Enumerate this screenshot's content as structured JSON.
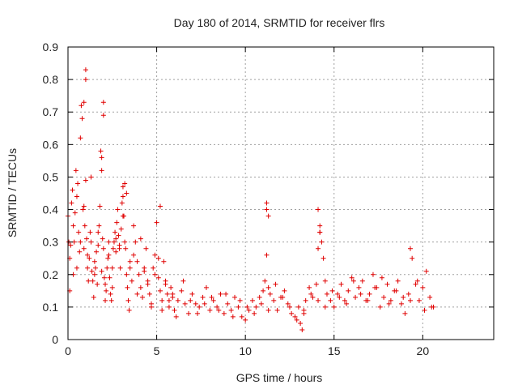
{
  "chart_data": {
    "type": "scatter",
    "title": "Day 180 of 2014, SRMTID for receiver flrs",
    "xlabel": "GPS time / hours",
    "ylabel": "SRMTID / TECUs",
    "xlim": [
      0,
      24
    ],
    "ylim": [
      0,
      0.9
    ],
    "xticks": [
      0,
      5,
      10,
      15,
      20
    ],
    "yticks": [
      0,
      0.1,
      0.2,
      0.3,
      0.4,
      0.5,
      0.6,
      0.7,
      0.8,
      0.9
    ],
    "xtick_labels": [
      "0",
      "5",
      "10",
      "15",
      "20"
    ],
    "ytick_labels": [
      "0",
      "0.1",
      "0.2",
      "0.3",
      "0.4",
      "0.5",
      "0.6",
      "0.7",
      "0.8",
      "0.9"
    ],
    "grid": true,
    "marker": "+",
    "color": "#e00000",
    "series": [
      {
        "name": "SRMTID",
        "x": [
          0.0,
          0.05,
          0.1,
          0.15,
          0.2,
          0.25,
          0.3,
          0.35,
          0.4,
          0.45,
          0.5,
          0.55,
          0.6,
          0.65,
          0.7,
          0.75,
          0.8,
          0.85,
          0.9,
          0.95,
          1.0,
          1.05,
          1.1,
          1.15,
          1.2,
          1.25,
          1.3,
          1.35,
          1.4,
          1.45,
          1.5,
          1.55,
          1.6,
          1.65,
          1.7,
          1.75,
          1.8,
          1.85,
          1.9,
          1.95,
          2.0,
          2.05,
          2.1,
          2.15,
          2.2,
          2.25,
          2.3,
          2.35,
          2.4,
          2.45,
          2.5,
          2.55,
          2.6,
          2.65,
          2.7,
          2.75,
          2.8,
          2.85,
          2.9,
          2.95,
          3.0,
          3.05,
          3.1,
          3.15,
          3.2,
          3.25,
          3.3,
          3.35,
          3.4,
          3.45,
          3.5,
          3.6,
          3.7,
          3.8,
          3.9,
          4.0,
          4.1,
          4.2,
          4.3,
          4.4,
          4.5,
          4.6,
          4.7,
          4.8,
          4.9,
          5.0,
          5.1,
          5.2,
          5.3,
          5.4,
          5.5,
          5.6,
          5.7,
          5.8,
          5.9,
          6.0,
          6.2,
          6.4,
          6.6,
          6.8,
          7.0,
          7.2,
          7.4,
          7.6,
          7.8,
          8.0,
          8.2,
          8.4,
          8.6,
          8.8,
          9.0,
          9.2,
          9.4,
          9.6,
          9.8,
          10.0,
          10.2,
          10.4,
          10.6,
          10.8,
          11.0,
          11.1,
          11.2,
          11.3,
          11.4,
          11.6,
          11.8,
          12.0,
          12.2,
          12.4,
          12.6,
          12.8,
          13.0,
          13.1,
          13.2,
          13.3,
          13.4,
          13.6,
          13.8,
          14.0,
          14.1,
          14.2,
          14.3,
          14.4,
          14.5,
          14.6,
          14.8,
          15.0,
          15.2,
          15.4,
          15.6,
          15.8,
          16.0,
          16.2,
          16.4,
          16.6,
          16.8,
          17.0,
          17.2,
          17.4,
          17.6,
          17.8,
          18.0,
          18.2,
          18.4,
          18.6,
          18.8,
          19.0,
          19.2,
          19.4,
          19.6,
          19.8,
          20.0,
          20.2,
          20.4,
          20.6,
          0.1,
          0.3,
          0.5,
          0.7,
          0.9,
          1.1,
          1.3,
          1.5,
          1.7,
          1.9,
          2.1,
          2.3,
          2.5,
          2.7,
          2.9,
          3.1,
          3.3,
          3.5,
          3.7,
          3.9,
          4.1,
          4.3,
          4.5,
          4.7,
          4.9,
          5.1,
          5.3,
          5.5,
          5.7,
          5.9,
          6.1,
          6.5,
          6.9,
          7.3,
          7.7,
          8.1,
          8.5,
          8.9,
          9.3,
          9.7,
          10.1,
          10.5,
          10.9,
          11.3,
          11.7,
          12.1,
          12.5,
          12.9,
          13.3,
          13.7,
          14.1,
          14.5,
          14.9,
          15.3,
          15.7,
          16.1,
          16.5,
          16.9,
          17.3,
          17.7,
          18.1,
          18.5,
          18.9,
          19.3,
          19.7,
          20.1,
          20.5,
          0.9,
          1.0,
          1.0,
          2.0,
          2.0,
          1.9,
          3.2,
          3.1,
          11.2,
          11.2,
          11.3,
          14.1,
          14.2,
          14.2,
          19.3,
          5.2
        ],
        "y": [
          0.38,
          0.3,
          0.25,
          0.29,
          0.42,
          0.46,
          0.35,
          0.3,
          0.39,
          0.52,
          0.44,
          0.48,
          0.33,
          0.27,
          0.62,
          0.72,
          0.68,
          0.4,
          0.28,
          0.35,
          0.49,
          0.31,
          0.22,
          0.18,
          0.25,
          0.33,
          0.3,
          0.21,
          0.18,
          0.13,
          0.24,
          0.22,
          0.27,
          0.17,
          0.29,
          0.35,
          0.41,
          0.58,
          0.52,
          0.31,
          0.28,
          0.19,
          0.17,
          0.15,
          0.22,
          0.25,
          0.3,
          0.19,
          0.14,
          0.12,
          0.22,
          0.28,
          0.3,
          0.33,
          0.27,
          0.36,
          0.4,
          0.32,
          0.28,
          0.22,
          0.34,
          0.42,
          0.44,
          0.38,
          0.3,
          0.28,
          0.2,
          0.16,
          0.12,
          0.09,
          0.22,
          0.18,
          0.26,
          0.3,
          0.24,
          0.2,
          0.16,
          0.13,
          0.21,
          0.28,
          0.18,
          0.14,
          0.1,
          0.22,
          0.26,
          0.36,
          0.19,
          0.15,
          0.12,
          0.24,
          0.18,
          0.14,
          0.1,
          0.16,
          0.13,
          0.09,
          0.12,
          0.15,
          0.11,
          0.08,
          0.14,
          0.11,
          0.1,
          0.13,
          0.16,
          0.09,
          0.12,
          0.1,
          0.14,
          0.08,
          0.11,
          0.09,
          0.13,
          0.1,
          0.07,
          0.06,
          0.09,
          0.12,
          0.1,
          0.13,
          0.15,
          0.18,
          0.26,
          0.16,
          0.14,
          0.12,
          0.09,
          0.13,
          0.15,
          0.11,
          0.08,
          0.07,
          0.1,
          0.05,
          0.03,
          0.09,
          0.12,
          0.16,
          0.13,
          0.17,
          0.28,
          0.33,
          0.3,
          0.25,
          0.18,
          0.14,
          0.12,
          0.1,
          0.14,
          0.17,
          0.12,
          0.15,
          0.19,
          0.13,
          0.16,
          0.18,
          0.12,
          0.14,
          0.2,
          0.16,
          0.1,
          0.13,
          0.17,
          0.12,
          0.15,
          0.18,
          0.11,
          0.08,
          0.14,
          0.25,
          0.17,
          0.12,
          0.16,
          0.21,
          0.13,
          0.1,
          0.15,
          0.2,
          0.22,
          0.3,
          0.41,
          0.26,
          0.5,
          0.2,
          0.33,
          0.21,
          0.12,
          0.26,
          0.16,
          0.31,
          0.29,
          0.38,
          0.45,
          0.24,
          0.35,
          0.14,
          0.31,
          0.22,
          0.17,
          0.11,
          0.2,
          0.25,
          0.09,
          0.17,
          0.12,
          0.14,
          0.07,
          0.18,
          0.12,
          0.08,
          0.11,
          0.13,
          0.09,
          0.14,
          0.07,
          0.12,
          0.1,
          0.08,
          0.11,
          0.09,
          0.17,
          0.13,
          0.1,
          0.06,
          0.08,
          0.14,
          0.12,
          0.1,
          0.15,
          0.13,
          0.11,
          0.18,
          0.14,
          0.12,
          0.16,
          0.19,
          0.11,
          0.15,
          0.13,
          0.12,
          0.18,
          0.09,
          0.1,
          0.73,
          0.8,
          0.83,
          0.73,
          0.69,
          0.56,
          0.48,
          0.47,
          0.42,
          0.4,
          0.38,
          0.4,
          0.35,
          0.33,
          0.28,
          0.41
        ]
      }
    ]
  }
}
